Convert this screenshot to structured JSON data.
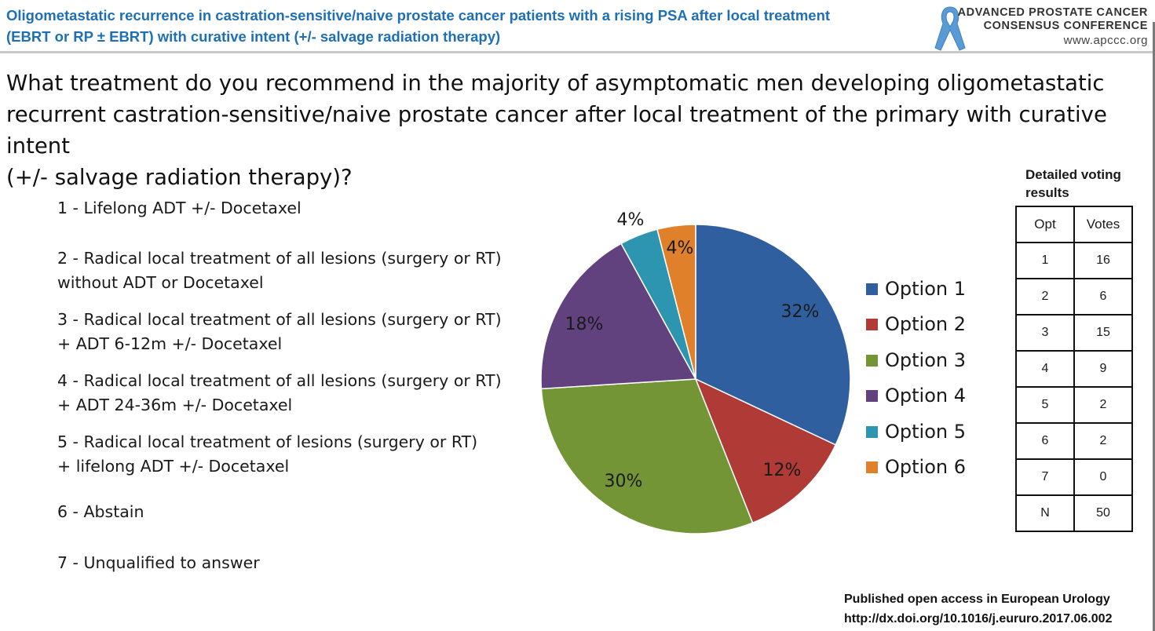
{
  "header": {
    "title_line1": "Oligometastatic recurrence in castration-sensitive/naive prostate cancer patients with a rising PSA after local treatment",
    "title_line2": "(EBRT or RP ± EBRT) with curative intent (+/- salvage radiation therapy)"
  },
  "logo": {
    "line1": "ADVANCED PROSTATE CANCER",
    "line2": "CONSENSUS CONFERENCE",
    "url": "www.apccc.org",
    "icon": "awareness-ribbon-icon",
    "color": "#5b9bd5"
  },
  "question": {
    "line1": "What treatment do you recommend in the majority of asymptomatic men developing oligometastatic",
    "line2": "recurrent castration-sensitive/naive prostate cancer after local treatment of the primary with curative intent",
    "line3": "(+/- salvage radiation therapy)?"
  },
  "options": [
    {
      "line1": "1 - Lifelong ADT +/- Docetaxel",
      "line2": ""
    },
    {
      "line1": "2 - Radical local treatment of all lesions (surgery or RT)",
      "line2": "without ADT or Docetaxel"
    },
    {
      "line1": "3 - Radical local treatment of all lesions (surgery or RT)",
      "line2": "+ ADT 6-12m +/- Docetaxel"
    },
    {
      "line1": "4 - Radical local treatment of all lesions (surgery or RT)",
      "line2": "+ ADT 24-36m +/- Docetaxel"
    },
    {
      "line1": "5 - Radical local treatment of lesions (surgery or RT)",
      "line2": "+ lifelong ADT +/- Docetaxel"
    },
    {
      "line1": "6 - Abstain",
      "line2": ""
    },
    {
      "line1": "7 - Unqualified to answer",
      "line2": ""
    }
  ],
  "chart_data": {
    "type": "pie",
    "categories": [
      "Option 1",
      "Option 2",
      "Option 3",
      "Option 4",
      "Option 5",
      "Option 6"
    ],
    "values": [
      32,
      12,
      30,
      18,
      4,
      4
    ],
    "labels": [
      "32%",
      "12%",
      "30%",
      "18%",
      "4%",
      "4%"
    ],
    "colors": [
      "#2f5f9e",
      "#b03a35",
      "#739536",
      "#61427f",
      "#2e95b1",
      "#e0802a"
    ],
    "start": "12 o'clock, clockwise",
    "legend": "right"
  },
  "table": {
    "caption": "Detailed voting results",
    "headers": [
      "Opt",
      "Votes"
    ],
    "rows": [
      [
        "1",
        "16"
      ],
      [
        "2",
        "6"
      ],
      [
        "3",
        "15"
      ],
      [
        "4",
        "9"
      ],
      [
        "5",
        "2"
      ],
      [
        "6",
        "2"
      ],
      [
        "7",
        "0"
      ],
      [
        "N",
        "50"
      ]
    ]
  },
  "footer": {
    "line1": "Published open access in European Urology",
    "line2": "http://dx.doi.org/10.1016/j.eururo.2017.06.002"
  }
}
